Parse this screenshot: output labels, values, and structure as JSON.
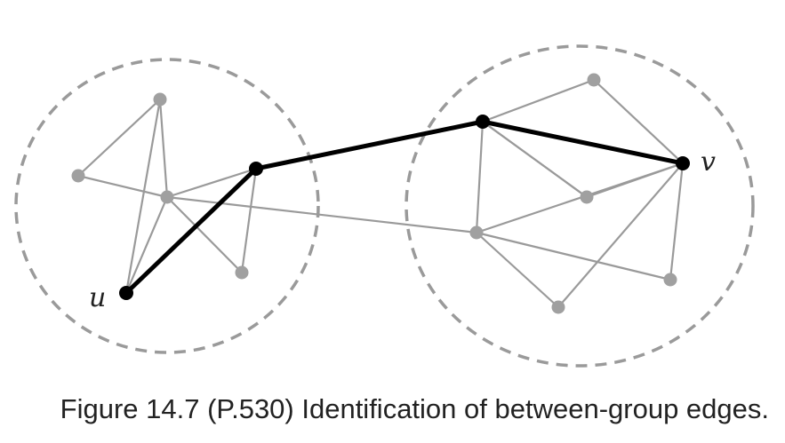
{
  "caption": "Figure 14.7 (P.530) Identification of between-group edges.",
  "labels": {
    "u": "u",
    "v": "v"
  },
  "colors": {
    "gray_edge": "#9a9a9a",
    "gray_node": "#a0a0a0",
    "highlight": "#000000",
    "group_border": "#9a9a9a"
  },
  "groups": [
    {
      "id": "left-group"
    },
    {
      "id": "right-group"
    }
  ],
  "nodes": [
    {
      "id": "L1"
    },
    {
      "id": "L2"
    },
    {
      "id": "L3"
    },
    {
      "id": "L4"
    },
    {
      "id": "L5"
    },
    {
      "id": "u"
    },
    {
      "id": "R1"
    },
    {
      "id": "R2"
    },
    {
      "id": "R3"
    },
    {
      "id": "R4"
    },
    {
      "id": "R5"
    },
    {
      "id": "v"
    },
    {
      "id": "R6"
    }
  ],
  "edges": [
    {
      "from": "L1",
      "to": "L2",
      "highlight": false
    },
    {
      "from": "L1",
      "to": "L3",
      "highlight": false
    },
    {
      "from": "L2",
      "to": "L3",
      "highlight": false
    },
    {
      "from": "L2",
      "to": "u",
      "highlight": false
    },
    {
      "from": "L3",
      "to": "u",
      "highlight": false
    },
    {
      "from": "L3",
      "to": "L4",
      "highlight": false
    },
    {
      "from": "L3",
      "to": "L5",
      "highlight": false
    },
    {
      "from": "L4",
      "to": "L5",
      "highlight": false
    },
    {
      "from": "L3",
      "to": "R3",
      "highlight": false
    },
    {
      "from": "R1",
      "to": "R2",
      "highlight": false
    },
    {
      "from": "R1",
      "to": "v",
      "highlight": false
    },
    {
      "from": "R2",
      "to": "R6",
      "highlight": false
    },
    {
      "from": "R6",
      "to": "R2",
      "highlight": false
    },
    {
      "from": "R6",
      "to": "v",
      "highlight": false
    },
    {
      "from": "R2",
      "to": "v",
      "highlight": false
    },
    {
      "from": "R2",
      "to": "R3",
      "highlight": false
    },
    {
      "from": "R3",
      "to": "v",
      "highlight": false
    },
    {
      "from": "R3",
      "to": "R4",
      "highlight": false
    },
    {
      "from": "R3",
      "to": "R5",
      "highlight": false
    },
    {
      "from": "R4",
      "to": "v",
      "highlight": false
    },
    {
      "from": "R5",
      "to": "v",
      "highlight": false
    },
    {
      "from": "u",
      "to": "L4",
      "highlight": true
    },
    {
      "from": "L4",
      "to": "R2",
      "highlight": true
    },
    {
      "from": "R2",
      "to": "v",
      "highlight": true
    }
  ]
}
